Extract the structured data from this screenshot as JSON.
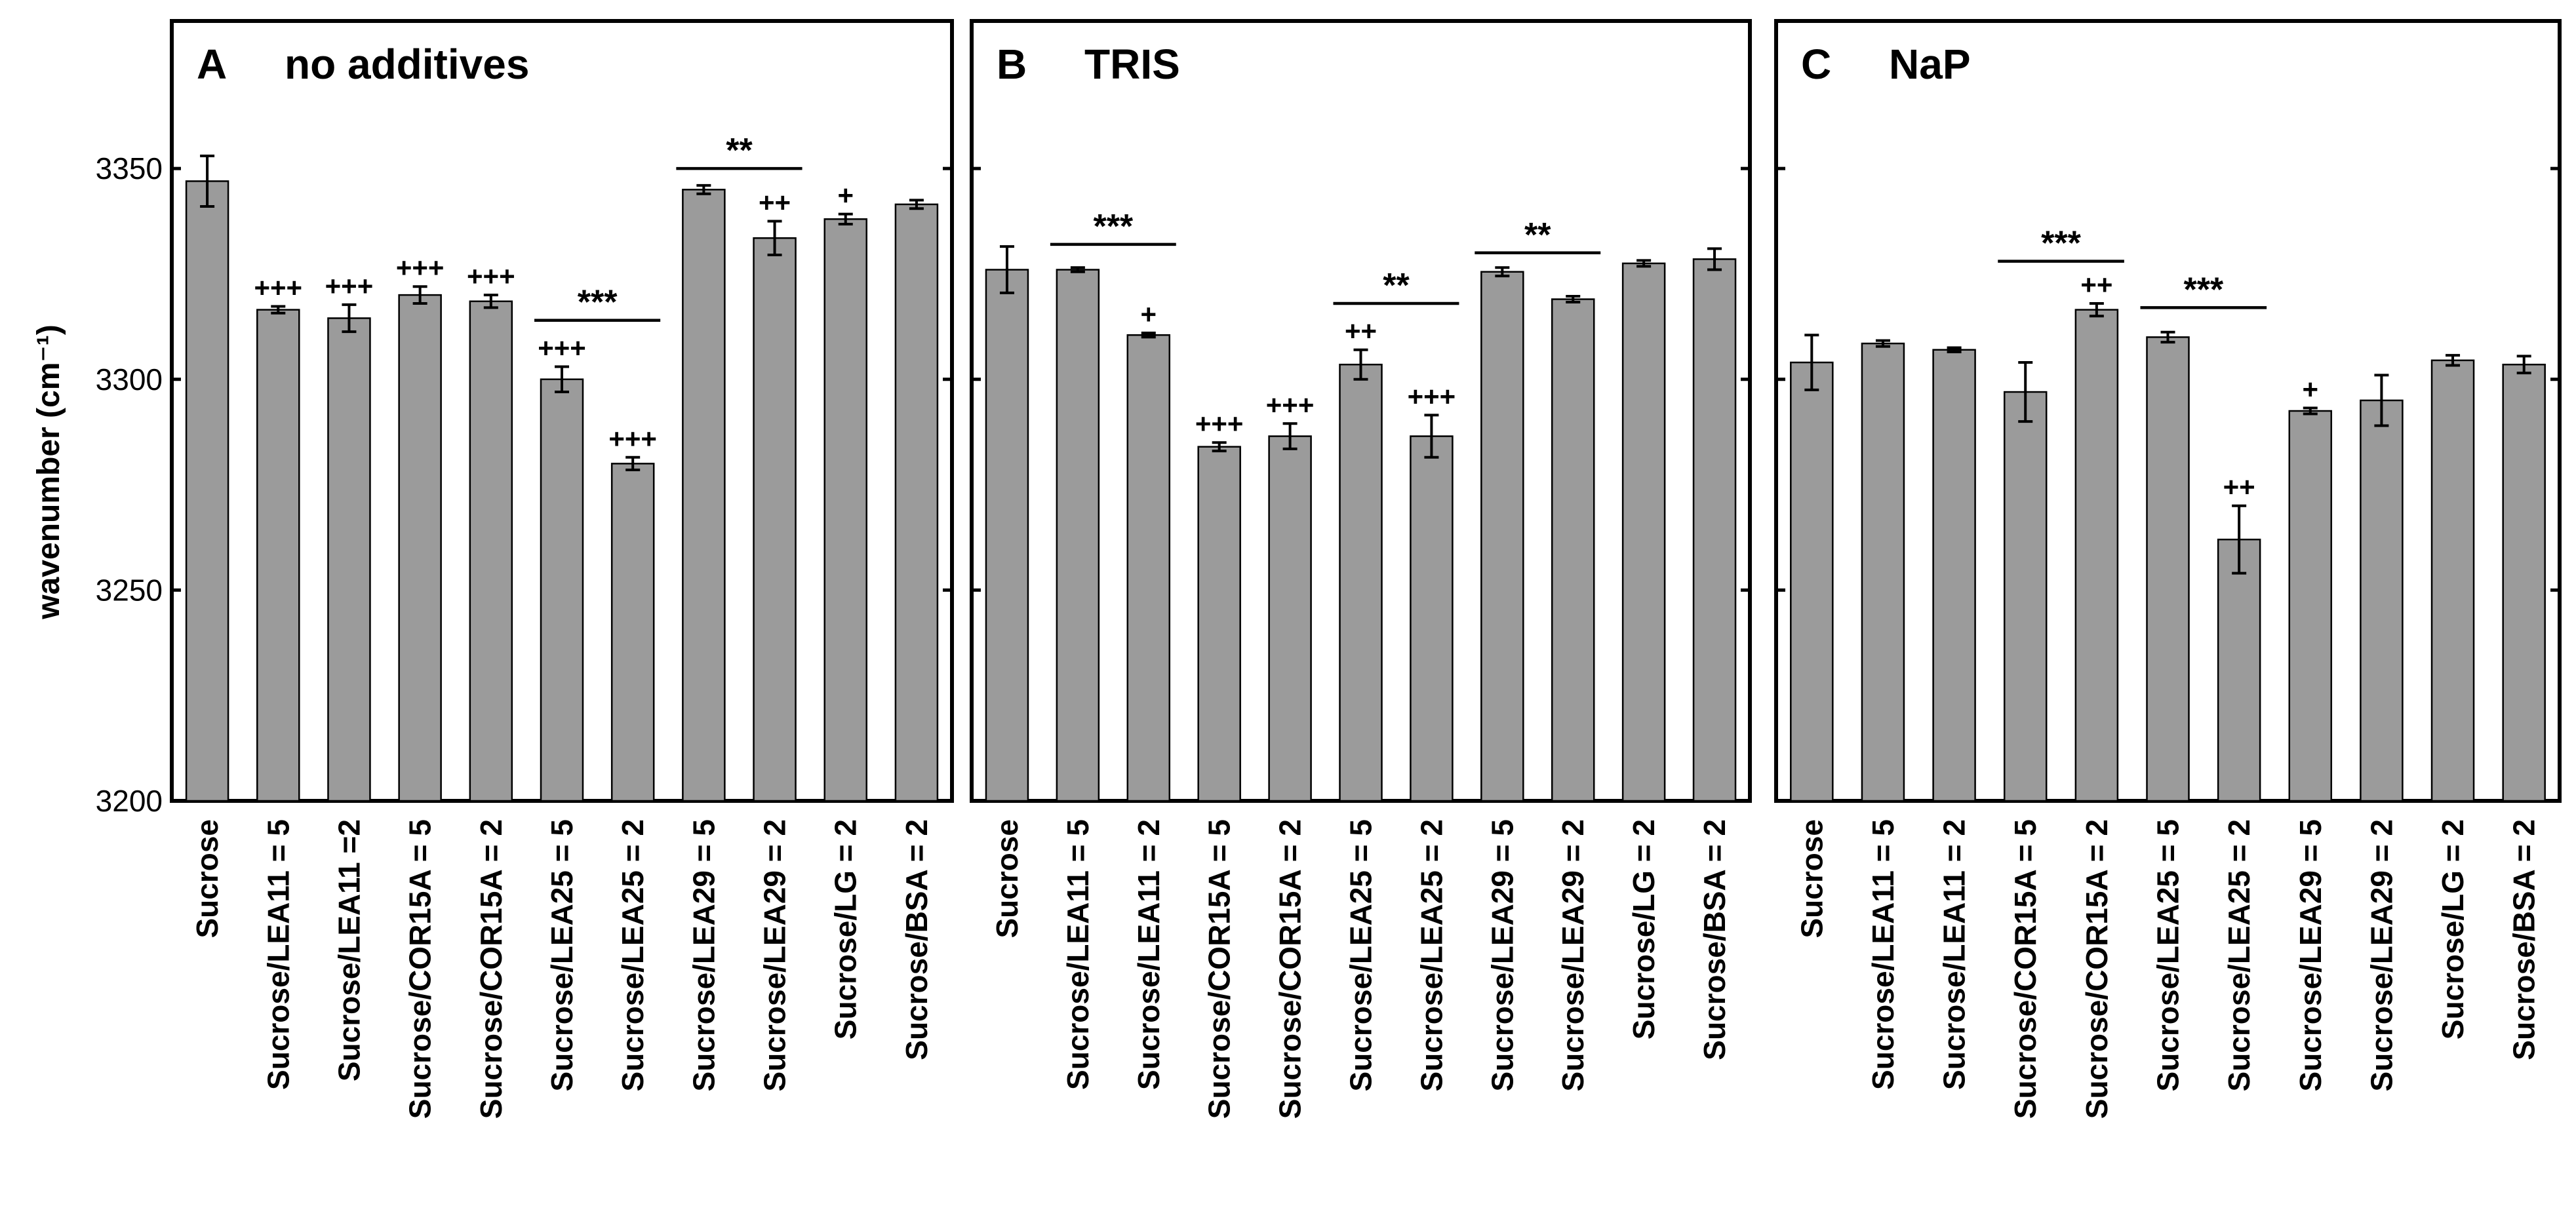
{
  "figure": {
    "ylabel": "wavenumber (cm⁻¹)",
    "bar_color": "#9b9b9b",
    "yticks": [
      3200,
      3250,
      3300,
      3350
    ]
  },
  "chart_data": [
    {
      "type": "bar",
      "panel": "A",
      "title": "no additives",
      "ylim": [
        3200,
        3385
      ],
      "ylabel": "wavenumber (cm⁻¹)",
      "categories": [
        "Sucrose",
        "Sucrose/LEA11 = 5",
        "Sucrose/LEA11 =2",
        "Sucrose/COR15A = 5",
        "Sucrose/COR15A = 2",
        "Sucrose/LEA25 = 5",
        "Sucrose/LEA25 = 2",
        "Sucrose/LEA29 = 5",
        "Sucrose/LEA29 = 2",
        "Sucrose/LG = 2",
        "Sucrose/BSA = 2"
      ],
      "values": [
        3347,
        3316.5,
        3314.5,
        3320,
        3318.5,
        3300,
        3280,
        3345,
        3333.5,
        3338,
        3341.5
      ],
      "errors": [
        6,
        0.8,
        3.2,
        2,
        1.5,
        3,
        1.5,
        1,
        4,
        1.2,
        1
      ],
      "marks": [
        "",
        "+++",
        "+++",
        "+++",
        "+++",
        "+++",
        "+++",
        "",
        "++",
        "+",
        ""
      ],
      "brackets": [
        {
          "from": 5,
          "to": 6,
          "label": "***",
          "y": 3314
        },
        {
          "from": 7,
          "to": 8,
          "label": "**",
          "y": 3350
        }
      ]
    },
    {
      "type": "bar",
      "panel": "B",
      "title": "TRIS",
      "ylim": [
        3200,
        3385
      ],
      "categories": [
        "Sucrose",
        "Sucrose/LEA11 = 5",
        "Sucrose/LEA11 = 2",
        "Sucrose/COR15A = 5",
        "Sucrose/COR15A = 2",
        "Sucrose/LEA25 = 5",
        "Sucrose/LEA25 = 2",
        "Sucrose/LEA29 = 5",
        "Sucrose/LEA29 = 2",
        "Sucrose/LG = 2",
        "Sucrose/BSA = 2"
      ],
      "values": [
        3326,
        3326,
        3310.5,
        3284,
        3286.5,
        3303.5,
        3286.5,
        3325.5,
        3319,
        3327.5,
        3328.5
      ],
      "errors": [
        5.5,
        0.5,
        0.5,
        1,
        3,
        3.5,
        5,
        1,
        0.7,
        0.7,
        2.5
      ],
      "marks": [
        "",
        "",
        "+",
        "+++",
        "+++",
        "++",
        "+++",
        "",
        "",
        "",
        ""
      ],
      "brackets": [
        {
          "from": 1,
          "to": 2,
          "label": "***",
          "y": 3332
        },
        {
          "from": 5,
          "to": 6,
          "label": "**",
          "y": 3318
        },
        {
          "from": 7,
          "to": 8,
          "label": "**",
          "y": 3330
        }
      ]
    },
    {
      "type": "bar",
      "panel": "C",
      "title": "NaP",
      "ylim": [
        3200,
        3385
      ],
      "categories": [
        "Sucrose",
        "Sucrose/LEA11 = 5",
        "Sucrose/LEA11 = 2",
        "Sucrose/COR15A = 5",
        "Sucrose/COR15A = 2",
        "Sucrose/LEA25 = 5",
        "Sucrose/LEA25 = 2",
        "Sucrose/LEA29 = 5",
        "Sucrose/LEA29 = 2",
        "Sucrose/LG = 2",
        "Sucrose/BSA = 2"
      ],
      "values": [
        3304,
        3308.5,
        3307,
        3297,
        3316.5,
        3310,
        3262,
        3292.5,
        3295,
        3304.5,
        3303.5
      ],
      "errors": [
        6.5,
        0.7,
        0.5,
        7,
        1.5,
        1.2,
        8,
        0.7,
        6,
        1.2,
        2
      ],
      "marks": [
        "",
        "",
        "",
        "",
        "++",
        "",
        "++",
        "+",
        "",
        "",
        ""
      ],
      "brackets": [
        {
          "from": 3,
          "to": 4,
          "label": "***",
          "y": 3328
        },
        {
          "from": 5,
          "to": 6,
          "label": "***",
          "y": 3317
        }
      ]
    }
  ]
}
